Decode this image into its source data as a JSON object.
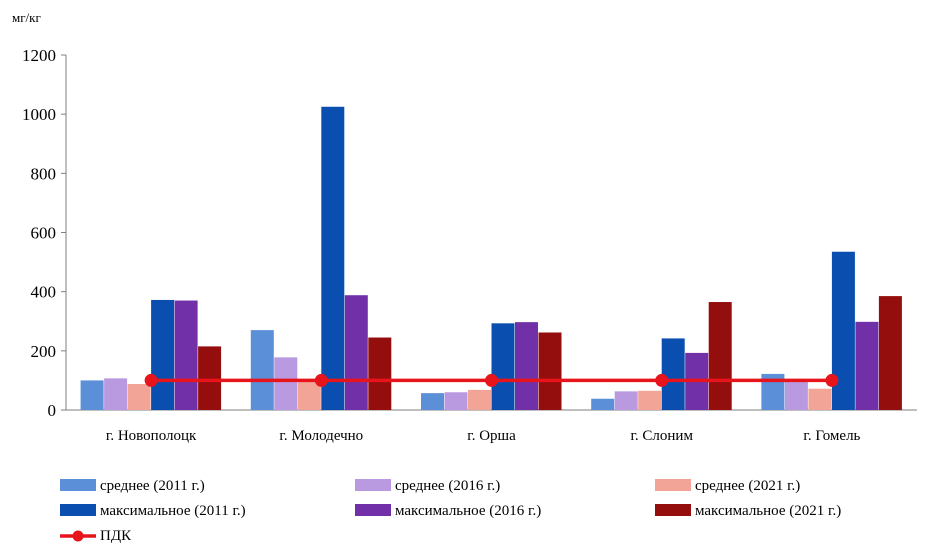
{
  "chart_data": {
    "type": "bar",
    "unit_label": "мг/кг",
    "categories": [
      "г. Новополоцк",
      "г. Молодечно",
      "г. Орша",
      "г. Слоним",
      "г. Гомель"
    ],
    "ylim": [
      0,
      1200
    ],
    "yticks": [
      "0",
      "200",
      "400",
      "600",
      "800",
      "1000",
      "1200"
    ],
    "grid": false,
    "legend_position": "bottom",
    "series": [
      {
        "name": "среднее (2011 г.)",
        "color": "#5B8FD8",
        "values": [
          100,
          270,
          57,
          38,
          122
        ]
      },
      {
        "name": "среднее (2016 г.)",
        "color": "#B99AE0",
        "values": [
          107,
          178,
          60,
          63,
          105
        ]
      },
      {
        "name": "среднее (2021 г.)",
        "color": "#F2A596",
        "values": [
          88,
          105,
          68,
          65,
          72
        ]
      },
      {
        "name": "максимальное (2011 г.)",
        "color": "#0A4FB0",
        "values": [
          372,
          1025,
          293,
          242,
          535
        ]
      },
      {
        "name": "максимальное (2016 г.)",
        "color": "#7230A8",
        "values": [
          370,
          388,
          297,
          193,
          298
        ]
      },
      {
        "name": "максимальное (2021 г.)",
        "color": "#950E0E",
        "values": [
          215,
          245,
          262,
          365,
          385
        ]
      }
    ],
    "reference_line": {
      "name": "ПДК",
      "color": "#E8141C",
      "value": 100
    }
  }
}
